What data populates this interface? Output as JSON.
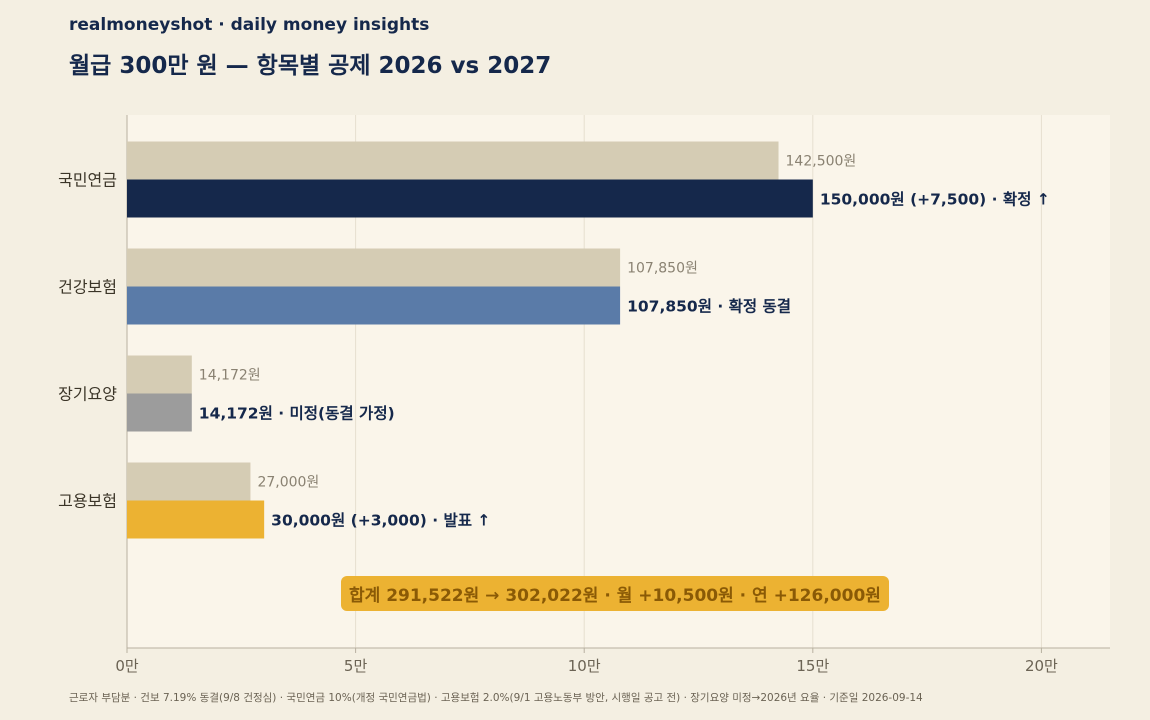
{
  "header": {
    "brand": "realmoneyshot · daily money insights",
    "title": "월급 300만 원 — 항목별 공제 2026 vs 2027"
  },
  "footnote": "근로자 부담분 · 건보 7.19% 동결(9/8 건정심) · 국민연금 10%(개정 국민연금법) · 고용보험 2.0%(9/1 고용노동부 방안, 시행일 공고 전) · 장기요양 미정→2026년 요율 · 기준일 2026-09-14",
  "total_badge": "합계 291,522원 → 302,022원 · 월 +10,500원 · 연 +126,000원",
  "chart_data": {
    "type": "bar",
    "orientation": "horizontal",
    "categories": [
      "국민연금",
      "건강보험",
      "장기요양",
      "고용보험"
    ],
    "series": [
      {
        "values": [
          142500,
          107850,
          14172,
          27000
        ],
        "color": "#d5ccb4",
        "labels": [
          "142,500원",
          "107,850원",
          "14,172원",
          "27,000원"
        ]
      },
      {
        "values": [
          150000,
          107850,
          14172,
          30000
        ],
        "colors": [
          "#15284b",
          "#5a7ba8",
          "#9c9c9c",
          "#ecb232"
        ],
        "labels": [
          "150,000원  (+7,500)  · 확정 ↑",
          "107,850원  · 확정 동결",
          "14,172원  · 미정(동결 가정)",
          "30,000원  (+3,000)  · 발표 ↑"
        ]
      }
    ],
    "xlim": [
      0,
      215000
    ],
    "xticks": [
      0,
      50000,
      100000,
      150000,
      200000
    ],
    "xtick_labels": [
      "0만",
      "5만",
      "10만",
      "15만",
      "20만"
    ],
    "grid": true
  }
}
